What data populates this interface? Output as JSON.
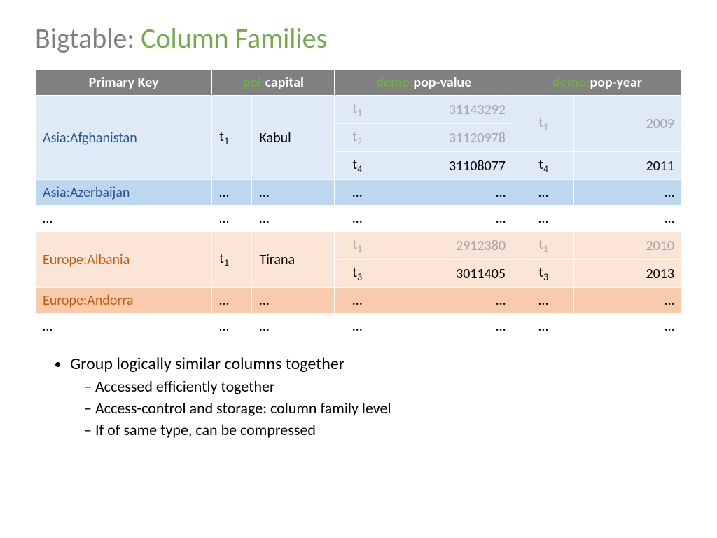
{
  "title": {
    "gray": "Bigtable:",
    "green": "Column Families"
  },
  "header": {
    "pk": "Primary Key",
    "col1_fam": "pol:",
    "col1_name": "capital",
    "col2_fam": "demo:",
    "col2_name": "pop-value",
    "col3_fam": "demo:",
    "col3_name": "pop-year"
  },
  "r1": {
    "key": "Asia:Afghanistan",
    "cap_t": "t",
    "cap_ts": "1",
    "cap": "Kabul",
    "pv1_t": "t",
    "pv1_s": "1",
    "pv1": "31143292",
    "pv2_t": "t",
    "pv2_s": "2",
    "pv2": "31120978",
    "pv3_t": "t",
    "pv3_s": "4",
    "pv3": "31108077",
    "py1_t": "t",
    "py1_s": "1",
    "py1": "2009",
    "py2_t": "t",
    "py2_s": "4",
    "py2": "2011"
  },
  "r2": {
    "key": "Asia:Azerbaijan",
    "d": "…"
  },
  "r3": {
    "d": "…"
  },
  "r4": {
    "key": "Europe:Albania",
    "cap_t": "t",
    "cap_ts": "1",
    "cap": "Tirana",
    "pv1_t": "t",
    "pv1_s": "1",
    "pv1": "2912380",
    "pv2_t": "t",
    "pv2_s": "3",
    "pv2": "3011405",
    "py1_t": "t",
    "py1_s": "1",
    "py1": "2010",
    "py2_t": "t",
    "py2_s": "3",
    "py2": "2013"
  },
  "r5": {
    "key": "Europe:Andorra",
    "d": "…"
  },
  "r6": {
    "d": "…"
  },
  "bullets": {
    "b1": "Group logically similar columns together",
    "b1a": "Accessed efficiently together",
    "b1b": "Access-control and storage: column family level",
    "b1c": "If of same type, can be compressed"
  }
}
